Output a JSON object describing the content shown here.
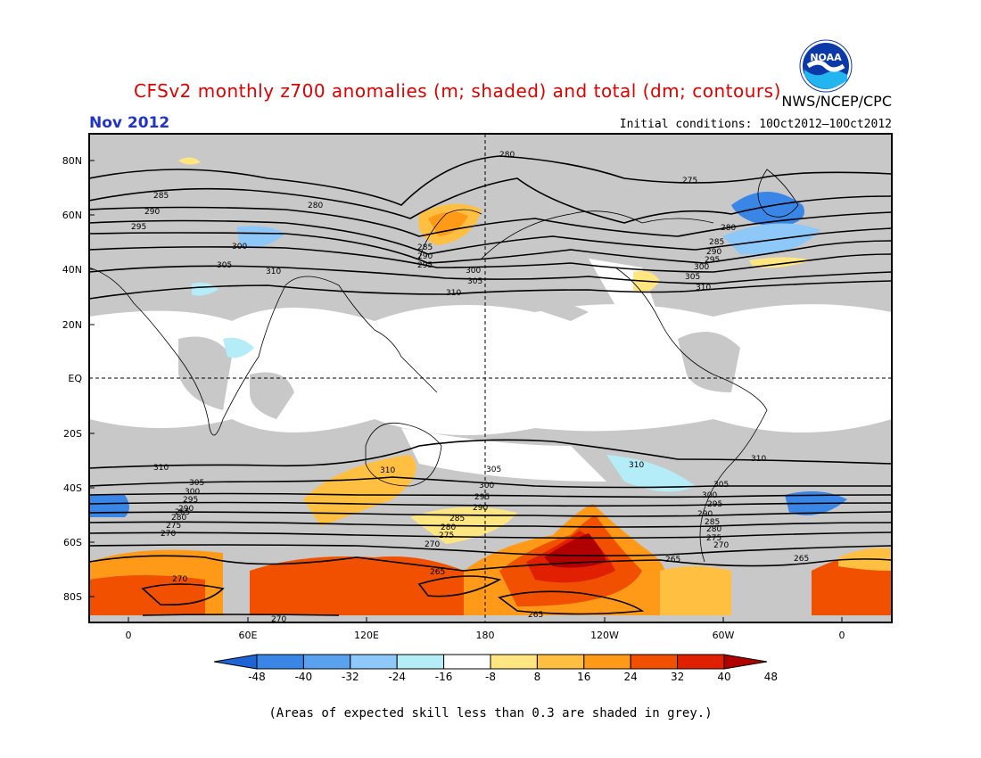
{
  "header": {
    "title": "CFSv2 monthly z700 anomalies (m; shaded) and total (dm; contours)",
    "agency": "NWS/NCEP/CPC",
    "month": "Nov 2012",
    "initial_conditions": "Initial conditions: 10Oct2012–10Oct2012",
    "logo_text": "NOAA"
  },
  "map": {
    "lat_labels": [
      "80N",
      "60N",
      "40N",
      "20N",
      "EQ",
      "20S",
      "40S",
      "60S",
      "80S"
    ],
    "lon_labels": [
      "0",
      "60E",
      "120E",
      "180",
      "120W",
      "60W",
      "0"
    ],
    "contour_labels": [
      "280",
      "275",
      "285",
      "290",
      "295",
      "300",
      "305",
      "310",
      "265",
      "270"
    ],
    "colors": {
      "land_skill_grey": "#c8c8c8",
      "positive_light": "#ffe680",
      "positive_mid": "#ffaa33",
      "positive_strong": "#ff5500",
      "positive_extreme": "#c00000",
      "negative_light": "#b0e6f6",
      "negative_mid": "#6fb8f0",
      "negative_strong": "#2a7de0"
    }
  },
  "colorbar": {
    "labels": [
      "-48",
      "-40",
      "-32",
      "-24",
      "-16",
      "-8",
      "8",
      "16",
      "24",
      "32",
      "40",
      "48"
    ],
    "colors": [
      "#1e64d6",
      "#3a86e6",
      "#5aa2f0",
      "#8ec8f8",
      "#b4ecf8",
      "#ffffff",
      "#ffe680",
      "#ffbf40",
      "#ff9a18",
      "#f05000",
      "#e02000",
      "#b00000"
    ]
  },
  "footnote": "(Areas of expected skill less than 0.3 are shaded in grey.)"
}
